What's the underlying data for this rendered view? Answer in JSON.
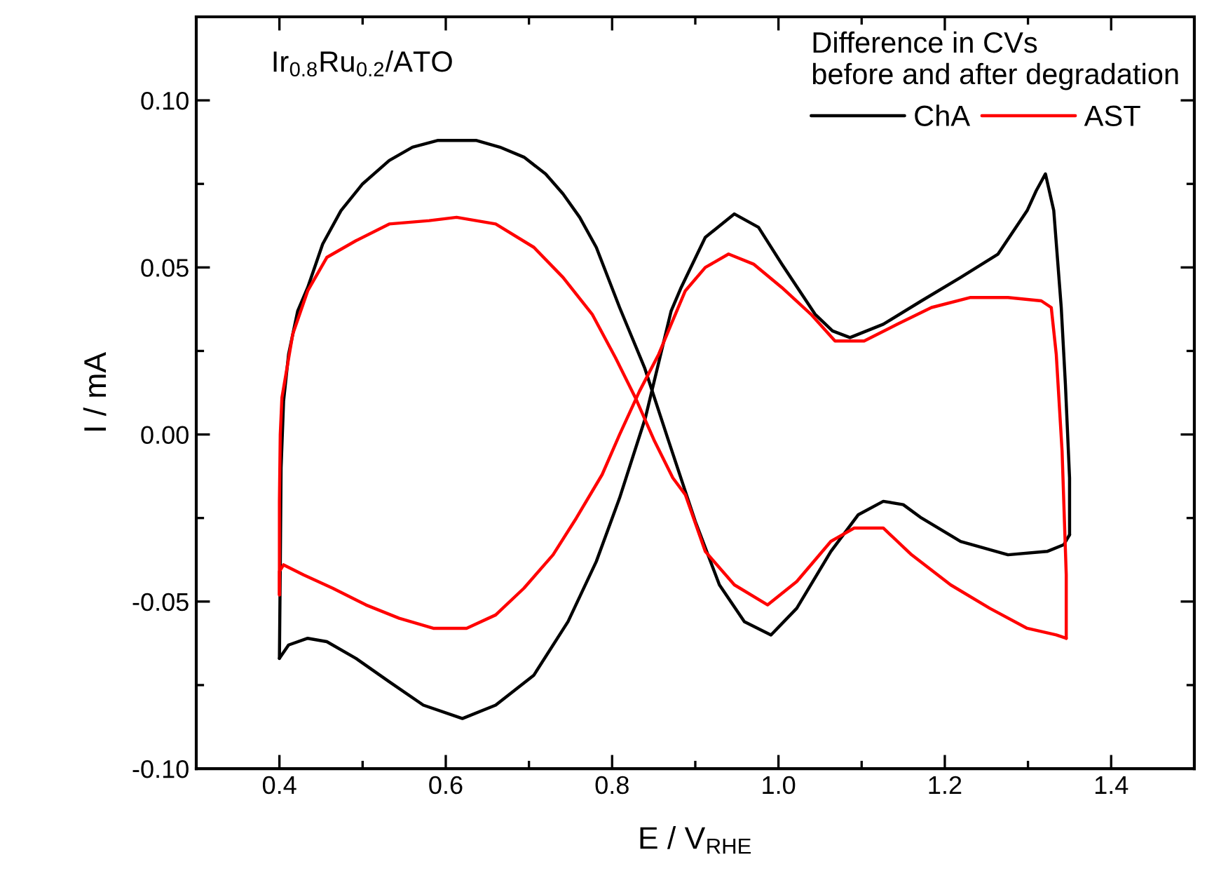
{
  "chart_data": {
    "type": "line",
    "xlabel": "E / V$_{RHE}$",
    "ylabel": "I / mA",
    "legend_title": "Difference in CVs\nbefore and after degradation",
    "legend": "top right",
    "annotations": [
      "Ir$_{0.8}$Ru$_{0.2}$/ATO"
    ],
    "xlim": [
      0.3,
      1.5
    ],
    "xticks": [
      0.4,
      0.6,
      0.8,
      {
        "value": 1.0,
        "label": "1.0"
      },
      1.2,
      1.4
    ],
    "ylim": [
      -0.1,
      0.125
    ],
    "yticks": [
      {
        "value": -0.1,
        "label": "-0.10"
      },
      {
        "value": -0.05,
        "label": "-0.05"
      },
      {
        "value": 0.0,
        "label": "0.00"
      },
      {
        "value": 0.05,
        "label": "0.05"
      },
      {
        "value": 0.1,
        "label": "0.10"
      }
    ],
    "grid": false,
    "series": [
      {
        "name": "ChA",
        "color": "#000000",
        "x": [
          0.4,
          0.401,
          0.402,
          0.405,
          0.411,
          0.422,
          0.434,
          0.452,
          0.474,
          0.5,
          0.532,
          0.56,
          0.59,
          0.637,
          0.665,
          0.694,
          0.72,
          0.741,
          0.761,
          0.781,
          0.809,
          0.839,
          0.868,
          0.9,
          0.929,
          0.959,
          0.991,
          1.022,
          1.063,
          1.096,
          1.126,
          1.15,
          1.172,
          1.219,
          1.276,
          1.323,
          1.343,
          1.35
        ],
        "values": [
          -0.067,
          -0.04,
          -0.01,
          0.01,
          0.024,
          0.037,
          0.044,
          0.057,
          0.067,
          0.075,
          0.082,
          0.086,
          0.088,
          0.088,
          0.086,
          0.083,
          0.078,
          0.072,
          0.065,
          0.056,
          0.038,
          0.02,
          -0.002,
          -0.026,
          -0.045,
          -0.056,
          -0.06,
          -0.052,
          -0.035,
          -0.024,
          -0.02,
          -0.021,
          -0.025,
          -0.032,
          -0.036,
          -0.035,
          -0.033,
          -0.03
        ]
      },
      {
        "color": "#000000",
        "x": [
          1.35,
          1.35,
          1.345,
          1.34,
          1.331,
          1.321,
          1.31,
          1.299,
          1.264,
          1.219,
          1.172,
          1.126,
          1.086,
          1.065,
          1.044,
          1.004,
          0.976,
          0.947,
          0.912,
          0.883,
          0.871,
          0.84,
          0.809,
          0.781,
          0.747,
          0.706,
          0.66,
          0.62,
          0.573,
          0.532,
          0.492,
          0.457,
          0.434,
          0.411,
          0.4
        ],
        "values": [
          -0.03,
          -0.013,
          0.015,
          0.038,
          0.067,
          0.078,
          0.073,
          0.067,
          0.054,
          0.047,
          0.04,
          0.033,
          0.029,
          0.031,
          0.036,
          0.051,
          0.062,
          0.066,
          0.059,
          0.044,
          0.037,
          0.005,
          -0.019,
          -0.038,
          -0.056,
          -0.072,
          -0.081,
          -0.085,
          -0.081,
          -0.074,
          -0.067,
          -0.062,
          -0.061,
          -0.063,
          -0.067
        ]
      },
      {
        "name": "AST",
        "color": "#ff0000",
        "x": [
          0.4,
          0.4,
          0.401,
          0.403,
          0.416,
          0.434,
          0.457,
          0.492,
          0.532,
          0.58,
          0.613,
          0.66,
          0.706,
          0.741,
          0.776,
          0.804,
          0.828,
          0.851,
          0.873,
          0.888,
          0.912,
          0.947,
          0.987,
          1.022,
          1.063,
          1.091,
          1.126,
          1.16,
          1.207,
          1.254,
          1.299,
          1.334,
          1.346
        ],
        "values": [
          -0.048,
          -0.02,
          0.0,
          0.011,
          0.03,
          0.043,
          0.053,
          0.058,
          0.063,
          0.064,
          0.065,
          0.063,
          0.056,
          0.047,
          0.036,
          0.023,
          0.011,
          -0.002,
          -0.013,
          -0.018,
          -0.035,
          -0.045,
          -0.051,
          -0.044,
          -0.032,
          -0.028,
          -0.028,
          -0.036,
          -0.045,
          -0.052,
          -0.058,
          -0.06,
          -0.061
        ]
      },
      {
        "color": "#ff0000",
        "x": [
          1.346,
          1.346,
          1.341,
          1.334,
          1.328,
          1.316,
          1.276,
          1.231,
          1.184,
          1.143,
          1.103,
          1.068,
          1.039,
          1.004,
          0.97,
          0.94,
          0.912,
          0.888,
          0.871,
          0.856,
          0.833,
          0.809,
          0.788,
          0.757,
          0.729,
          0.694,
          0.66,
          0.625,
          0.585,
          0.544,
          0.504,
          0.464,
          0.429,
          0.405,
          0.4,
          0.4
        ],
        "values": [
          -0.061,
          -0.042,
          -0.005,
          0.024,
          0.038,
          0.04,
          0.041,
          0.041,
          0.038,
          0.033,
          0.028,
          0.028,
          0.036,
          0.044,
          0.051,
          0.054,
          0.05,
          0.043,
          0.033,
          0.024,
          0.013,
          0.0,
          -0.012,
          -0.025,
          -0.036,
          -0.046,
          -0.054,
          -0.058,
          -0.058,
          -0.055,
          -0.051,
          -0.046,
          -0.042,
          -0.039,
          -0.041,
          -0.048
        ]
      }
    ]
  }
}
